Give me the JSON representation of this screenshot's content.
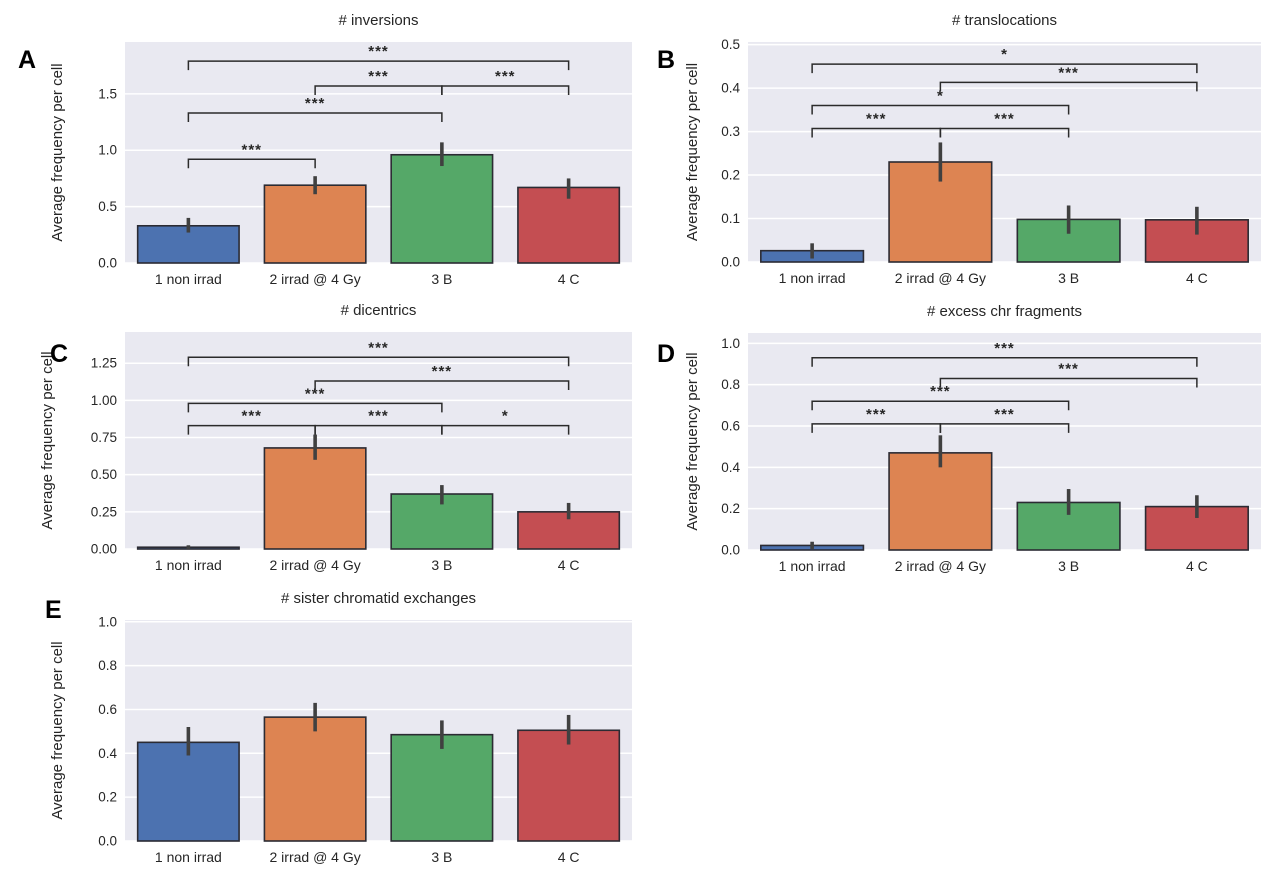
{
  "figure": {
    "background": "#ffffff",
    "plot_background": "#e9e9f1",
    "grid_color": "#ffffff",
    "bar_colors": [
      "#4c72b0",
      "#dd8452",
      "#55a868",
      "#c44e52"
    ],
    "bar_edge_color": "#2b2b33",
    "error_bar_color": "#404040",
    "bracket_color": "#2b2b2b",
    "text_color": "#262626",
    "panel_letter_color": "#000000"
  },
  "chart_data": [
    {
      "type": "bar",
      "panel_label": "A",
      "title": "# inversions",
      "ylabel": "Average frequency per cell",
      "categories": [
        "1 non irrad",
        "2 irrad @ 4 Gy",
        "3 B",
        "4 C"
      ],
      "values": [
        0.33,
        0.69,
        0.96,
        0.67
      ],
      "error_bars": [
        [
          0.27,
          0.4
        ],
        [
          0.61,
          0.77
        ],
        [
          0.86,
          1.07
        ],
        [
          0.57,
          0.75
        ]
      ],
      "yticks": [
        0.0,
        0.5,
        1.0,
        1.5
      ],
      "ytick_labels": [
        "0.0",
        "0.5",
        "1.0",
        "1.5"
      ],
      "ylim": [
        0,
        1.96
      ],
      "grid": true,
      "annotations": [
        {
          "pair": [
            0,
            1
          ],
          "level": 0.92,
          "label": "***"
        },
        {
          "pair": [
            0,
            2
          ],
          "level": 1.33,
          "label": "***"
        },
        {
          "pair": [
            1,
            2
          ],
          "level": 1.57,
          "label": "***"
        },
        {
          "pair": [
            2,
            3
          ],
          "level": 1.57,
          "label": "***"
        },
        {
          "pair": [
            0,
            3
          ],
          "level": 1.79,
          "label": "***"
        }
      ]
    },
    {
      "type": "bar",
      "panel_label": "B",
      "title": "# translocations",
      "ylabel": "Average frequency per cell",
      "categories": [
        "1 non irrad",
        "2 irrad @ 4 Gy",
        "3 B",
        "4 C"
      ],
      "values": [
        0.026,
        0.23,
        0.098,
        0.097
      ],
      "error_bars": [
        [
          0.008,
          0.043
        ],
        [
          0.185,
          0.275
        ],
        [
          0.065,
          0.13
        ],
        [
          0.063,
          0.127
        ]
      ],
      "yticks": [
        0.0,
        0.1,
        0.2,
        0.3,
        0.4,
        0.5
      ],
      "ytick_labels": [
        "0.0",
        "0.1",
        "0.2",
        "0.3",
        "0.4",
        "0.5"
      ],
      "ylim": [
        0,
        0.506
      ],
      "grid": true,
      "annotations": [
        {
          "pair": [
            0,
            1
          ],
          "level": 0.307,
          "label": "***"
        },
        {
          "pair": [
            1,
            2
          ],
          "level": 0.307,
          "label": "***"
        },
        {
          "pair": [
            0,
            2
          ],
          "level": 0.36,
          "label": "*"
        },
        {
          "pair": [
            1,
            3
          ],
          "level": 0.413,
          "label": "***"
        },
        {
          "pair": [
            0,
            3
          ],
          "level": 0.455,
          "label": "*"
        }
      ]
    },
    {
      "type": "bar",
      "panel_label": "C",
      "title": "# dicentrics",
      "ylabel": "Average frequency per cell",
      "categories": [
        "1 non irrad",
        "2 irrad @ 4 Gy",
        "3 B",
        "4 C"
      ],
      "values": [
        0.012,
        0.68,
        0.37,
        0.25
      ],
      "error_bars": [
        [
          0.0,
          0.025
        ],
        [
          0.6,
          0.77
        ],
        [
          0.3,
          0.43
        ],
        [
          0.2,
          0.31
        ]
      ],
      "yticks": [
        0.0,
        0.25,
        0.5,
        0.75,
        1.0,
        1.25
      ],
      "ytick_labels": [
        "0.00",
        "0.25",
        "0.50",
        "0.75",
        "1.00",
        "1.25"
      ],
      "ylim": [
        0,
        1.46
      ],
      "grid": true,
      "annotations": [
        {
          "pair": [
            0,
            1
          ],
          "level": 0.83,
          "label": "***"
        },
        {
          "pair": [
            1,
            2
          ],
          "level": 0.83,
          "label": "***"
        },
        {
          "pair": [
            2,
            3
          ],
          "level": 0.83,
          "label": "*"
        },
        {
          "pair": [
            0,
            2
          ],
          "level": 0.98,
          "label": "***"
        },
        {
          "pair": [
            1,
            3
          ],
          "level": 1.13,
          "label": "***"
        },
        {
          "pair": [
            0,
            3
          ],
          "level": 1.29,
          "label": "***"
        }
      ]
    },
    {
      "type": "bar",
      "panel_label": "D",
      "title": "# excess chr fragments",
      "ylabel": "Average frequency per cell",
      "categories": [
        "1 non irrad",
        "2 irrad @ 4 Gy",
        "3 B",
        "4 C"
      ],
      "values": [
        0.022,
        0.47,
        0.23,
        0.21
      ],
      "error_bars": [
        [
          0.005,
          0.04
        ],
        [
          0.4,
          0.555
        ],
        [
          0.17,
          0.295
        ],
        [
          0.155,
          0.265
        ]
      ],
      "yticks": [
        0.0,
        0.2,
        0.4,
        0.6,
        0.8,
        1.0
      ],
      "ytick_labels": [
        "0.0",
        "0.2",
        "0.4",
        "0.6",
        "0.8",
        "1.0"
      ],
      "ylim": [
        0,
        1.05
      ],
      "grid": true,
      "annotations": [
        {
          "pair": [
            0,
            1
          ],
          "level": 0.61,
          "label": "***"
        },
        {
          "pair": [
            1,
            2
          ],
          "level": 0.61,
          "label": "***"
        },
        {
          "pair": [
            0,
            2
          ],
          "level": 0.72,
          "label": "***"
        },
        {
          "pair": [
            1,
            3
          ],
          "level": 0.83,
          "label": "***"
        },
        {
          "pair": [
            0,
            3
          ],
          "level": 0.93,
          "label": "***"
        }
      ]
    },
    {
      "type": "bar",
      "panel_label": "E",
      "title": "# sister chromatid exchanges",
      "ylabel": "Average frequency per cell",
      "categories": [
        "1 non irrad",
        "2 irrad @ 4 Gy",
        "3 B",
        "4 C"
      ],
      "values": [
        0.45,
        0.565,
        0.485,
        0.505
      ],
      "error_bars": [
        [
          0.39,
          0.52
        ],
        [
          0.5,
          0.63
        ],
        [
          0.42,
          0.55
        ],
        [
          0.44,
          0.575
        ]
      ],
      "yticks": [
        0.0,
        0.2,
        0.4,
        0.6,
        0.8,
        1.0
      ],
      "ytick_labels": [
        "0.0",
        "0.2",
        "0.4",
        "0.6",
        "0.8",
        "1.0"
      ],
      "ylim": [
        0,
        1.008
      ],
      "grid": true,
      "annotations": []
    }
  ]
}
